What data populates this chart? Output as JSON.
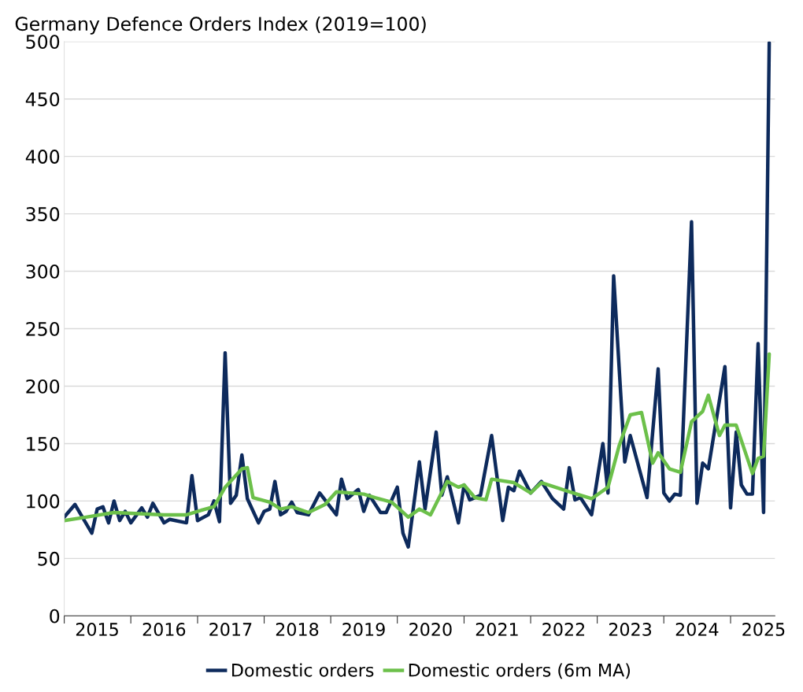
{
  "chart_data": {
    "type": "line",
    "title": "Germany Defence Orders Index (2019=100)",
    "series": [
      {
        "name": "Domestic orders",
        "color": "#0d2a5c",
        "x": [
          "2015-01",
          "2015-03",
          "2015-06",
          "2015-07",
          "2015-08",
          "2015-09",
          "2015-10",
          "2015-11",
          "2015-12",
          "2016-01",
          "2016-03",
          "2016-04",
          "2016-05",
          "2016-07",
          "2016-08",
          "2016-11",
          "2016-12",
          "2017-01",
          "2017-03",
          "2017-04",
          "2017-05",
          "2017-06",
          "2017-07",
          "2017-08",
          "2017-09",
          "2017-10",
          "2017-12",
          "2018-01",
          "2018-02",
          "2018-03",
          "2018-04",
          "2018-05",
          "2018-06",
          "2018-07",
          "2018-09",
          "2018-11",
          "2019-02",
          "2019-03",
          "2019-04",
          "2019-06",
          "2019-07",
          "2019-08",
          "2019-10",
          "2019-11",
          "2020-01",
          "2020-02",
          "2020-03",
          "2020-05",
          "2020-06",
          "2020-08",
          "2020-09",
          "2020-10",
          "2020-12",
          "2021-01",
          "2021-02",
          "2021-04",
          "2021-06",
          "2021-08",
          "2021-09",
          "2021-10",
          "2021-11",
          "2022-01",
          "2022-03",
          "2022-05",
          "2022-07",
          "2022-08",
          "2022-09",
          "2022-10",
          "2022-12",
          "2023-02",
          "2023-03",
          "2023-04",
          "2023-06",
          "2023-07",
          "2023-10",
          "2023-12",
          "2024-01",
          "2024-02",
          "2024-03",
          "2024-04",
          "2024-06",
          "2024-07",
          "2024-08",
          "2024-09",
          "2024-12",
          "2025-01",
          "2025-02",
          "2025-03",
          "2025-04",
          "2025-05",
          "2025-06",
          "2025-07",
          "2025-08"
        ],
        "values": [
          86,
          97,
          72,
          93,
          95,
          81,
          100,
          83,
          91,
          81,
          94,
          86,
          98,
          81,
          84,
          81,
          122,
          83,
          88,
          100,
          82,
          229,
          98,
          105,
          140,
          102,
          81,
          91,
          93,
          117,
          88,
          91,
          99,
          90,
          88,
          107,
          88,
          119,
          102,
          110,
          91,
          105,
          90,
          90,
          112,
          72,
          60,
          134,
          93,
          160,
          105,
          121,
          81,
          114,
          101,
          105,
          157,
          83,
          112,
          109,
          126,
          107,
          117,
          102,
          93,
          129,
          101,
          103,
          88,
          150,
          107,
          296,
          134,
          157,
          103,
          215,
          107,
          100,
          106,
          105,
          343,
          98,
          133,
          128,
          217,
          94,
          160,
          114,
          106,
          106,
          237,
          90,
          499
        ]
      },
      {
        "name": "Domestic orders (6m MA)",
        "color": "#6cc04a",
        "x": [
          "2015-01",
          "2015-05",
          "2015-10",
          "2016-07",
          "2016-11",
          "2017-01",
          "2017-04",
          "2017-06",
          "2017-09",
          "2017-10",
          "2017-11",
          "2018-02",
          "2018-04",
          "2018-06",
          "2018-09",
          "2018-12",
          "2019-02",
          "2019-07",
          "2019-09",
          "2019-12",
          "2020-03",
          "2020-05",
          "2020-07",
          "2020-10",
          "2020-12",
          "2021-01",
          "2021-03",
          "2021-05",
          "2021-06",
          "2021-10",
          "2022-01",
          "2022-03",
          "2022-08",
          "2022-12",
          "2023-03",
          "2023-05",
          "2023-07",
          "2023-09",
          "2023-11",
          "2023-12",
          "2024-02",
          "2024-04",
          "2024-06",
          "2024-08",
          "2024-09",
          "2024-11",
          "2024-12",
          "2025-02",
          "2025-05",
          "2025-06",
          "2025-07",
          "2025-08"
        ],
        "values": [
          83,
          86,
          90,
          88,
          88,
          91,
          95,
          112,
          128,
          129,
          103,
          99,
          93,
          95,
          90,
          97,
          108,
          106,
          103,
          99,
          86,
          93,
          88,
          117,
          112,
          114,
          103,
          101,
          119,
          116,
          107,
          116,
          108,
          102,
          112,
          148,
          175,
          177,
          133,
          142,
          128,
          125,
          169,
          178,
          192,
          157,
          166,
          166,
          124,
          137,
          139,
          228
        ]
      }
    ],
    "xlim": [
      "2015-01",
      "2025-09"
    ],
    "xticks": [
      {
        "value": "2015-01",
        "label": null
      },
      {
        "value": "2015-07",
        "label": "2015"
      },
      {
        "value": "2016-01",
        "label": null
      },
      {
        "value": "2016-07",
        "label": "2016"
      },
      {
        "value": "2017-01",
        "label": null
      },
      {
        "value": "2017-07",
        "label": "2017"
      },
      {
        "value": "2018-01",
        "label": null
      },
      {
        "value": "2018-07",
        "label": "2018"
      },
      {
        "value": "2019-01",
        "label": null
      },
      {
        "value": "2019-07",
        "label": "2019"
      },
      {
        "value": "2020-01",
        "label": null
      },
      {
        "value": "2020-07",
        "label": "2020"
      },
      {
        "value": "2021-01",
        "label": null
      },
      {
        "value": "2021-07",
        "label": "2021"
      },
      {
        "value": "2022-01",
        "label": null
      },
      {
        "value": "2022-07",
        "label": "2022"
      },
      {
        "value": "2023-01",
        "label": null
      },
      {
        "value": "2023-07",
        "label": "2023"
      },
      {
        "value": "2024-01",
        "label": null
      },
      {
        "value": "2024-07",
        "label": "2024"
      },
      {
        "value": "2025-01",
        "label": null
      },
      {
        "value": "2025-07",
        "label": "2025"
      }
    ],
    "ylim": [
      0,
      500
    ],
    "yticks": [
      0,
      50,
      100,
      150,
      200,
      250,
      300,
      350,
      400,
      450,
      500
    ],
    "grid": "y",
    "legend": "bottom",
    "marker": "none",
    "line_style": "solid"
  }
}
